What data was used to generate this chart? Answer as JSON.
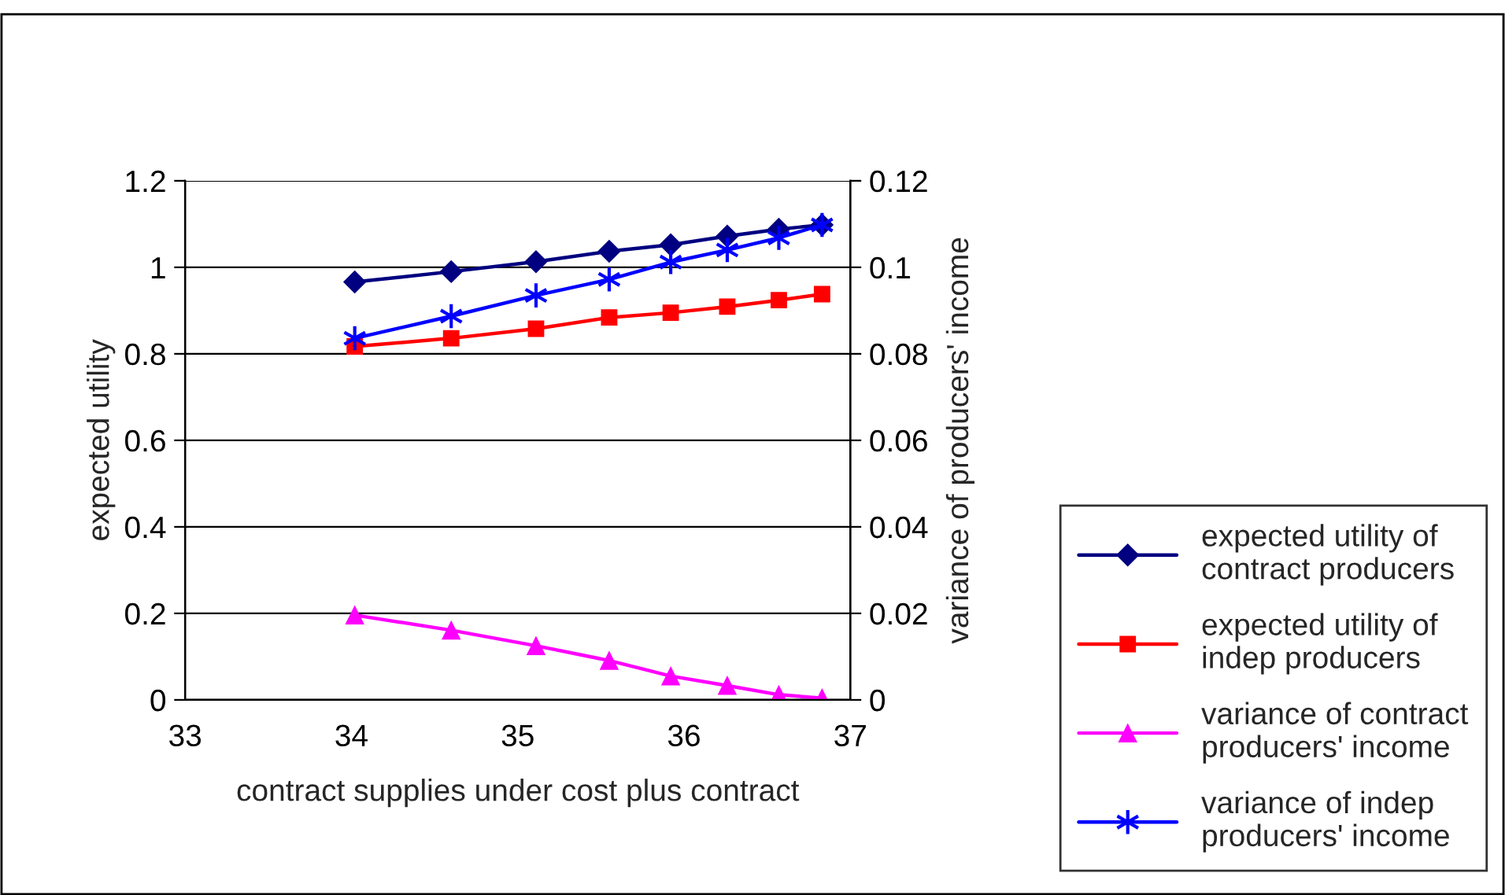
{
  "chart_data": {
    "type": "line",
    "xlabel": "contract supplies under cost plus contract",
    "ylabel": "expected utility",
    "y2label": "variance of producers' income",
    "x": [
      34.02,
      34.6,
      35.11,
      35.55,
      35.92,
      36.26,
      36.57,
      36.83
    ],
    "xlim": [
      33,
      37
    ],
    "xticks": [
      33,
      34,
      35,
      36,
      37
    ],
    "ylim": [
      0,
      1.2
    ],
    "yticks": [
      0,
      0.2,
      0.4,
      0.6,
      0.8,
      1,
      1.2
    ],
    "y2lim": [
      0,
      0.12
    ],
    "y2ticks": [
      0,
      0.02,
      0.04,
      0.06,
      0.08,
      0.1,
      0.12
    ],
    "grid": "y",
    "legend": "right",
    "series": [
      {
        "name": "expected utility of contract producers",
        "color": "#000080",
        "marker": "diamond",
        "values": [
          0.966,
          0.99,
          1.013,
          1.037,
          1.052,
          1.072,
          1.088,
          1.098
        ]
      },
      {
        "name": "expected utility of indep producers",
        "color": "#ff0000",
        "marker": "square",
        "values": [
          0.817,
          0.836,
          0.858,
          0.884,
          0.895,
          0.909,
          0.924,
          0.938
        ]
      },
      {
        "name": "variance of contract producers' income",
        "color": "#ff00ff",
        "marker": "triangle",
        "axis": "y2",
        "values": [
          0.0196,
          0.0161,
          0.0125,
          0.0091,
          0.0055,
          0.0033,
          0.0012,
          0.0004
        ]
      },
      {
        "name": "variance of indep producers' income",
        "color": "#0000ff",
        "marker": "cross",
        "axis": "y2",
        "values": [
          0.0836,
          0.0887,
          0.0935,
          0.0972,
          0.1012,
          0.104,
          0.1068,
          0.1098
        ]
      }
    ]
  }
}
